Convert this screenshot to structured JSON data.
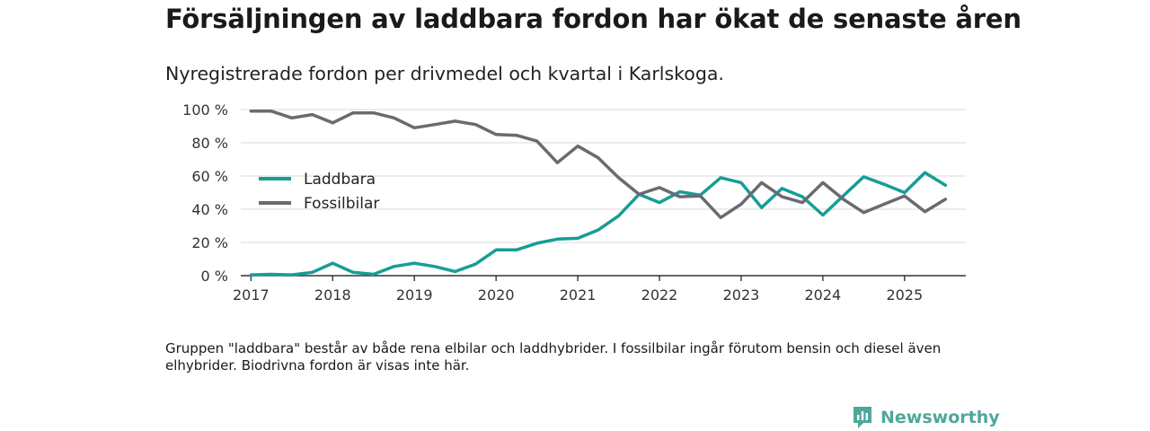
{
  "title": "Försäljningen av laddbara fordon har ökat de senaste åren",
  "subtitle": "Nyregistrerade fordon per drivmedel och kvartal i Karlskoga.",
  "footnote": "Gruppen \"laddbara\" består av både rena elbilar och laddhybrider. I fossilbilar ingår förutom bensin och diesel även elhybrider. Biodrivna fordon är visas inte här.",
  "brand": {
    "name": "Newsworthy"
  },
  "chart_data": {
    "type": "line",
    "title": "Försäljningen av laddbara fordon har ökat de senaste åren",
    "subtitle": "Nyregistrerade fordon per drivmedel och kvartal i Karlskoga.",
    "xlabel": "",
    "ylabel": "",
    "ylim": [
      0,
      100
    ],
    "yticks": [
      0,
      20,
      40,
      60,
      80,
      100
    ],
    "ytick_labels": [
      "0 %",
      "20 %",
      "40 %",
      "60 %",
      "80 %",
      "100 %"
    ],
    "xlim": [
      2016.875,
      2025.75
    ],
    "xticks": [
      2017,
      2018,
      2019,
      2020,
      2021,
      2022,
      2023,
      2024,
      2025
    ],
    "xtick_labels": [
      "2017",
      "2018",
      "2019",
      "2020",
      "2021",
      "2022",
      "2023",
      "2024",
      "2025"
    ],
    "grid": true,
    "legend_position": "left",
    "x": [
      2017.0,
      2017.25,
      2017.5,
      2017.75,
      2018.0,
      2018.25,
      2018.5,
      2018.75,
      2019.0,
      2019.25,
      2019.5,
      2019.75,
      2020.0,
      2020.25,
      2020.5,
      2020.75,
      2021.0,
      2021.25,
      2021.5,
      2021.75,
      2022.0,
      2022.25,
      2022.5,
      2022.75,
      2023.0,
      2023.25,
      2023.5,
      2023.75,
      2024.0,
      2024.25,
      2024.5,
      2024.75,
      2025.0,
      2025.25,
      2025.5
    ],
    "series": [
      {
        "name": "Laddbara",
        "color": "#159e96",
        "values": [
          0.5,
          0.8,
          0.5,
          2,
          7.5,
          2,
          0.8,
          5.5,
          7.5,
          5.5,
          2.5,
          7,
          15.5,
          15.5,
          19.5,
          22,
          22.5,
          27.5,
          36,
          49,
          44,
          50.5,
          48.5,
          59,
          56,
          41,
          52.5,
          47.5,
          36.5,
          48,
          59.5,
          55,
          50,
          62,
          54.5
        ]
      },
      {
        "name": "Fossilbilar",
        "color": "#6b6a72",
        "values": [
          99,
          99,
          95,
          97,
          92,
          98,
          98,
          95,
          89,
          91,
          93,
          91,
          85,
          84.5,
          81,
          68,
          78,
          71,
          59,
          49,
          53,
          47.5,
          48,
          35,
          43,
          56,
          47.5,
          44,
          56,
          46,
          38,
          43,
          48,
          38.5,
          46
        ]
      }
    ]
  }
}
